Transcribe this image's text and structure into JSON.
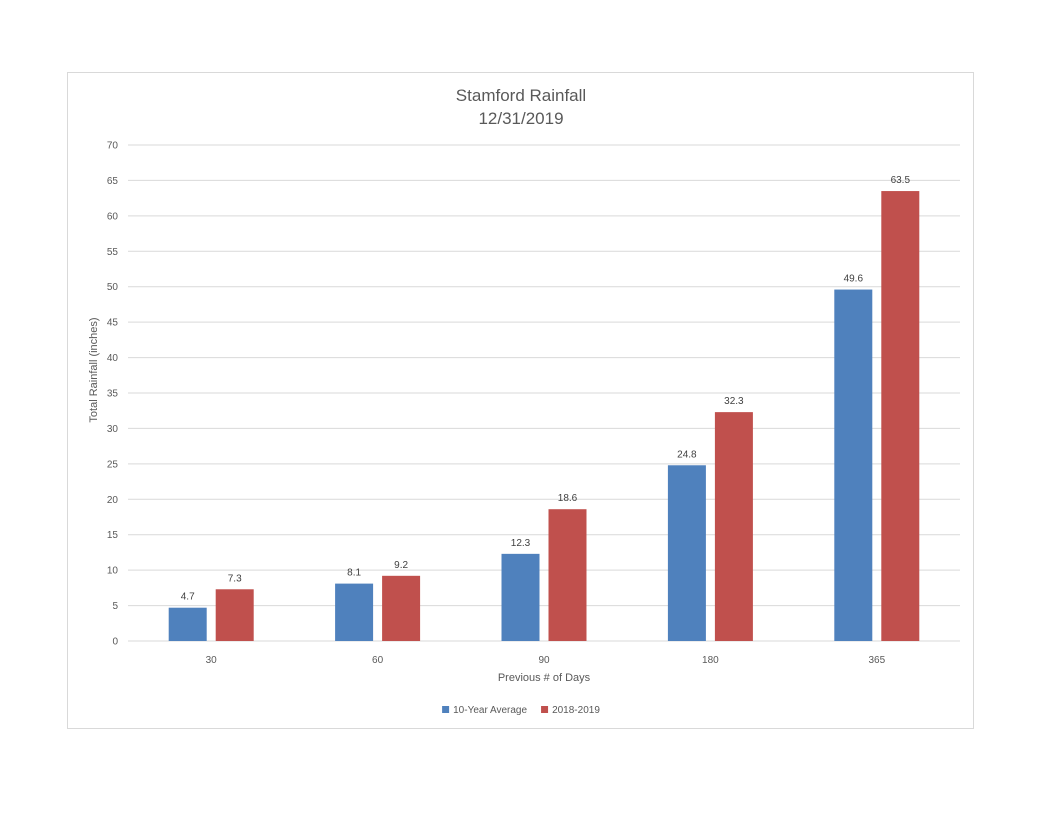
{
  "chart_data": {
    "type": "bar",
    "title": "Stamford Rainfall",
    "subtitle": "12/31/2019",
    "xlabel": "Previous # of Days",
    "ylabel": "Total Rainfall (inches)",
    "categories": [
      "30",
      "60",
      "90",
      "180",
      "365"
    ],
    "series": [
      {
        "name": "10-Year Average",
        "values": [
          4.7,
          8.1,
          12.3,
          24.8,
          49.6
        ],
        "labels": [
          "4.7",
          "8.1",
          "12.3",
          "24.8",
          "49.6"
        ],
        "color": "#4f81bd"
      },
      {
        "name": "2018-2019",
        "values": [
          7.3,
          9.2,
          18.6,
          32.3,
          63.5
        ],
        "labels": [
          "7.3",
          "9.2",
          "18.6",
          "32.3",
          "63.5"
        ],
        "color": "#c0504d"
      }
    ],
    "ylim": [
      0,
      70
    ],
    "yticks": [
      "0",
      "5",
      "10",
      "15",
      "20",
      "25",
      "30",
      "35",
      "40",
      "45",
      "50",
      "55",
      "60",
      "65",
      "70"
    ],
    "grid": true,
    "legend_position": "bottom"
  }
}
